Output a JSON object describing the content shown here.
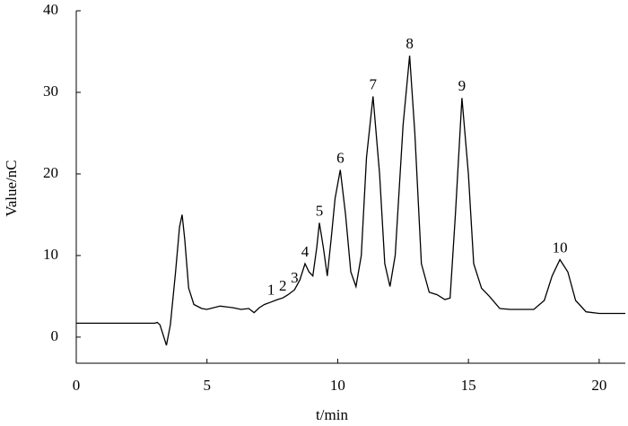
{
  "chart_data": {
    "type": "line",
    "x_label": "t/min",
    "y_label": "Value/nC",
    "xlim": [
      0,
      21
    ],
    "ylim": [
      -3.2,
      40
    ],
    "xticks": [
      0,
      5,
      10,
      15,
      20
    ],
    "yticks": [
      0,
      10,
      20,
      30,
      40
    ],
    "grid": false,
    "series": [
      {
        "color": "#000000",
        "x": [
          0,
          3.0,
          3.1,
          3.2,
          3.3,
          3.45,
          3.6,
          3.8,
          3.95,
          4.05,
          4.15,
          4.3,
          4.5,
          4.8,
          5.0,
          5.5,
          6.0,
          6.3,
          6.6,
          6.8,
          7.0,
          7.2,
          7.45,
          7.7,
          7.9,
          8.1,
          8.35,
          8.55,
          8.75,
          8.9,
          9.05,
          9.2,
          9.3,
          9.45,
          9.6,
          9.75,
          9.9,
          10.1,
          10.3,
          10.5,
          10.7,
          10.9,
          11.1,
          11.35,
          11.6,
          11.8,
          12.0,
          12.2,
          12.5,
          12.75,
          12.95,
          13.2,
          13.5,
          13.8,
          14.1,
          14.3,
          14.5,
          14.75,
          15.0,
          15.2,
          15.5,
          15.8,
          16.2,
          16.6,
          17.5,
          17.9,
          18.2,
          18.5,
          18.8,
          19.1,
          19.5,
          20,
          21
        ],
        "values": [
          1.7,
          1.7,
          1.8,
          1.5,
          0.5,
          -1,
          1.5,
          8,
          13.5,
          15,
          12,
          6,
          4,
          3.5,
          3.4,
          3.8,
          3.6,
          3.4,
          3.5,
          3,
          3.6,
          4,
          4.3,
          4.6,
          4.8,
          5.2,
          5.8,
          7,
          9,
          8,
          7.5,
          11,
          14,
          11,
          7.5,
          12,
          17,
          20.5,
          15,
          8,
          6.2,
          10,
          22,
          29.5,
          20,
          9,
          6.2,
          10,
          26,
          34.5,
          25,
          9,
          5.5,
          5.2,
          4.6,
          4.8,
          15,
          29.3,
          20,
          9,
          6,
          5,
          3.5,
          3.4,
          3.4,
          4.5,
          7.5,
          9.5,
          8,
          4.5,
          3.1,
          2.9,
          2.9
        ]
      }
    ],
    "annotations": [
      {
        "text": "1",
        "x": 7.45,
        "y": 4.3
      },
      {
        "text": "2",
        "x": 7.9,
        "y": 4.8
      },
      {
        "text": "3",
        "x": 8.35,
        "y": 5.8
      },
      {
        "text": "4",
        "x": 8.75,
        "y": 9
      },
      {
        "text": "5",
        "x": 9.3,
        "y": 14
      },
      {
        "text": "6",
        "x": 10.1,
        "y": 20.5
      },
      {
        "text": "7",
        "x": 11.35,
        "y": 29.5
      },
      {
        "text": "8",
        "x": 12.75,
        "y": 34.5
      },
      {
        "text": "9",
        "x": 14.75,
        "y": 29.3
      },
      {
        "text": "10",
        "x": 18.5,
        "y": 9.5
      }
    ]
  }
}
